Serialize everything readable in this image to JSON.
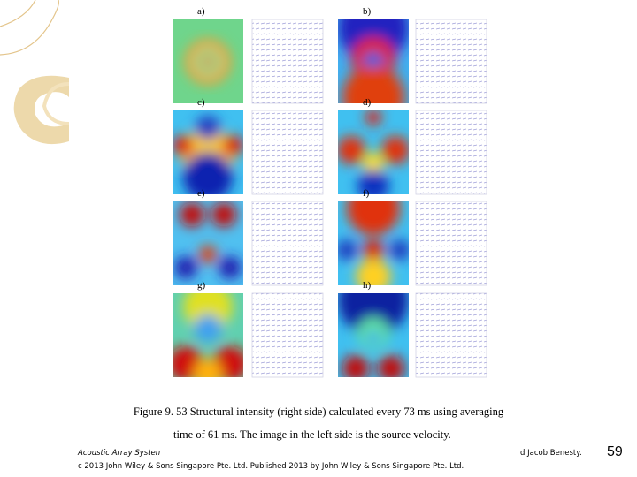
{
  "figure": {
    "panels": [
      {
        "label": "a)"
      },
      {
        "label": "b)"
      },
      {
        "label": "c)"
      },
      {
        "label": "d)"
      },
      {
        "label": "e)"
      },
      {
        "label": "f)"
      },
      {
        "label": "g)"
      },
      {
        "label": "h)"
      }
    ],
    "caption": [
      "Figure 9. 53 Structural intensity (right side) calculated every 73 ms using averaging",
      "time of 61 ms. The image in the left side is the source velocity."
    ]
  },
  "footer": {
    "series": "Acoustic Array Systen",
    "authors": "d Jacob Benesty.",
    "copyright": "c 2013 John Wiley & Sons Singapore Pte. Ltd. Published 2013 by John Wiley & Sons Singapore Pte. Ltd.",
    "page": "59"
  }
}
